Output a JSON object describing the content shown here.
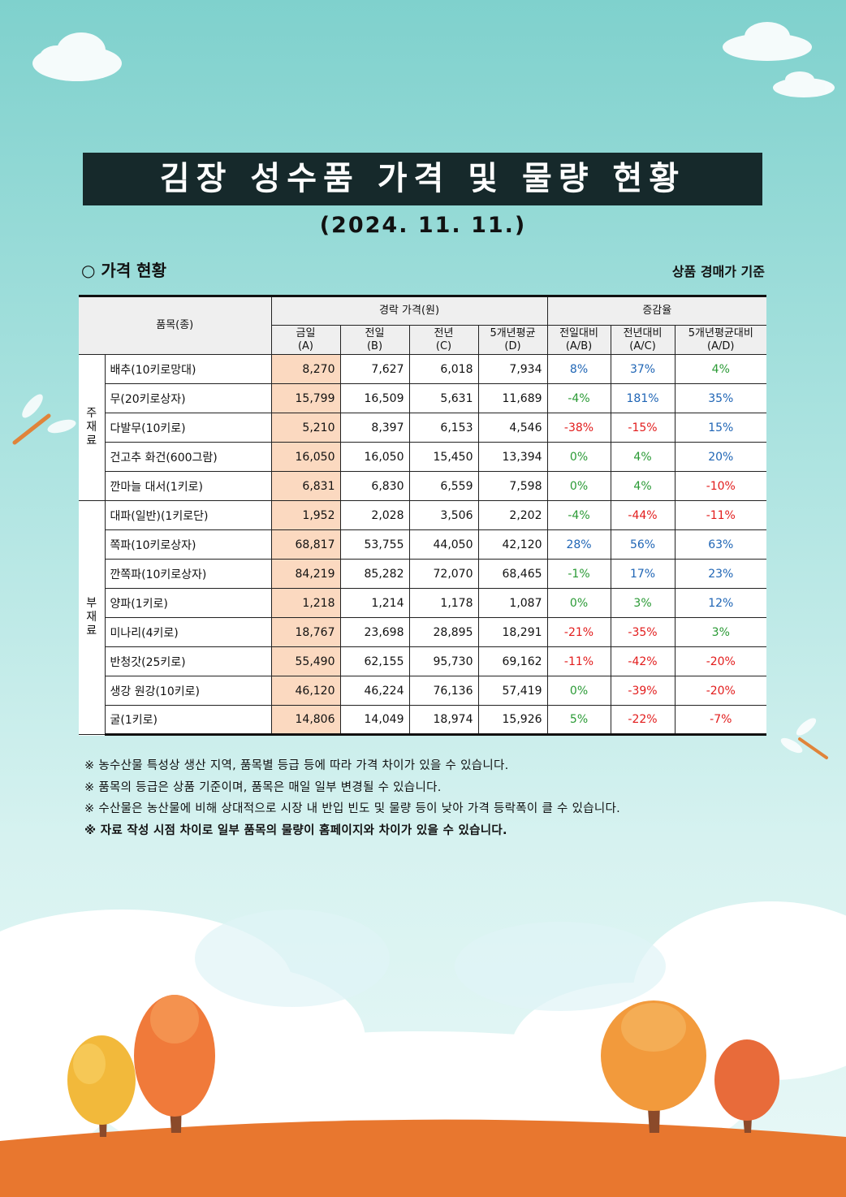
{
  "title": "김장 성수품 가격 및 물량 현황",
  "date": "(2024. 11. 11.)",
  "section_title": "○ 가격 현황",
  "basis": "상품 경매가 기준",
  "table": {
    "head_item": "품목(종)",
    "head_price_group": "경락 가격(원)",
    "head_rate_group": "증감율",
    "price_cols": [
      {
        "line1": "금일",
        "line2": "(A)"
      },
      {
        "line1": "전일",
        "line2": "(B)"
      },
      {
        "line1": "전년",
        "line2": "(C)"
      },
      {
        "line1": "5개년평균",
        "line2": "(D)"
      }
    ],
    "rate_cols": [
      {
        "line1": "전일대비",
        "line2": "(A/B)"
      },
      {
        "line1": "전년대비",
        "line2": "(A/C)"
      },
      {
        "line1": "5개년평균대비",
        "line2": "(A/D)"
      }
    ],
    "groups": [
      {
        "label_lines": [
          "주",
          "재",
          "료"
        ],
        "rows": [
          {
            "name": "배추(10키로망대)",
            "a": "8,270",
            "b": "7,627",
            "c": "6,018",
            "d": "7,934",
            "ab": "8%",
            "ac": "37%",
            "ad": "4%",
            "ab_color": "#1f65b5",
            "ac_color": "#1f65b5",
            "ad_color": "#2a9a35"
          },
          {
            "name": "무(20키로상자)",
            "a": "15,799",
            "b": "16,509",
            "c": "5,631",
            "d": "11,689",
            "ab": "-4%",
            "ac": "181%",
            "ad": "35%",
            "ab_color": "#2a9a35",
            "ac_color": "#1f65b5",
            "ad_color": "#1f65b5"
          },
          {
            "name": "다발무(10키로)",
            "a": "5,210",
            "b": "8,397",
            "c": "6,153",
            "d": "4,546",
            "ab": "-38%",
            "ac": "-15%",
            "ad": "15%",
            "ab_color": "#e21c1c",
            "ac_color": "#e21c1c",
            "ad_color": "#1f65b5"
          },
          {
            "name": "건고추 화건(600그람)",
            "a": "16,050",
            "b": "16,050",
            "c": "15,450",
            "d": "13,394",
            "ab": "0%",
            "ac": "4%",
            "ad": "20%",
            "ab_color": "#2a9a35",
            "ac_color": "#2a9a35",
            "ad_color": "#1f65b5"
          },
          {
            "name": "깐마늘 대서(1키로)",
            "a": "6,831",
            "b": "6,830",
            "c": "6,559",
            "d": "7,598",
            "ab": "0%",
            "ac": "4%",
            "ad": "-10%",
            "ab_color": "#2a9a35",
            "ac_color": "#2a9a35",
            "ad_color": "#e21c1c"
          }
        ]
      },
      {
        "label_lines": [
          "부",
          "재",
          "료"
        ],
        "rows": [
          {
            "name": "대파(일반)(1키로단)",
            "a": "1,952",
            "b": "2,028",
            "c": "3,506",
            "d": "2,202",
            "ab": "-4%",
            "ac": "-44%",
            "ad": "-11%",
            "ab_color": "#2a9a35",
            "ac_color": "#e21c1c",
            "ad_color": "#e21c1c"
          },
          {
            "name": "쪽파(10키로상자)",
            "a": "68,817",
            "b": "53,755",
            "c": "44,050",
            "d": "42,120",
            "ab": "28%",
            "ac": "56%",
            "ad": "63%",
            "ab_color": "#1f65b5",
            "ac_color": "#1f65b5",
            "ad_color": "#1f65b5"
          },
          {
            "name": "깐쪽파(10키로상자)",
            "a": "84,219",
            "b": "85,282",
            "c": "72,070",
            "d": "68,465",
            "ab": "-1%",
            "ac": "17%",
            "ad": "23%",
            "ab_color": "#2a9a35",
            "ac_color": "#1f65b5",
            "ad_color": "#1f65b5"
          },
          {
            "name": "양파(1키로)",
            "a": "1,218",
            "b": "1,214",
            "c": "1,178",
            "d": "1,087",
            "ab": "0%",
            "ac": "3%",
            "ad": "12%",
            "ab_color": "#2a9a35",
            "ac_color": "#2a9a35",
            "ad_color": "#1f65b5"
          },
          {
            "name": "미나리(4키로)",
            "a": "18,767",
            "b": "23,698",
            "c": "28,895",
            "d": "18,291",
            "ab": "-21%",
            "ac": "-35%",
            "ad": "3%",
            "ab_color": "#e21c1c",
            "ac_color": "#e21c1c",
            "ad_color": "#2a9a35"
          },
          {
            "name": "반청갓(25키로)",
            "a": "55,490",
            "b": "62,155",
            "c": "95,730",
            "d": "69,162",
            "ab": "-11%",
            "ac": "-42%",
            "ad": "-20%",
            "ab_color": "#e21c1c",
            "ac_color": "#e21c1c",
            "ad_color": "#e21c1c"
          },
          {
            "name": "생강 원강(10키로)",
            "a": "46,120",
            "b": "46,224",
            "c": "76,136",
            "d": "57,419",
            "ab": "0%",
            "ac": "-39%",
            "ad": "-20%",
            "ab_color": "#2a9a35",
            "ac_color": "#e21c1c",
            "ad_color": "#e21c1c"
          },
          {
            "name": "굴(1키로)",
            "a": "14,806",
            "b": "14,049",
            "c": "18,974",
            "d": "15,926",
            "ab": "5%",
            "ac": "-22%",
            "ad": "-7%",
            "ab_color": "#2a9a35",
            "ac_color": "#e21c1c",
            "ad_color": "#e21c1c"
          }
        ]
      }
    ]
  },
  "notes": [
    {
      "text": "※ 농수산물 특성상 생산 지역, 품목별 등급 등에 따라 가격 차이가 있을 수 있습니다.",
      "bold": false
    },
    {
      "text": "※ 품목의 등급은 상품 기준이며, 품목은 매일 일부 변경될 수 있습니다.",
      "bold": false
    },
    {
      "text": "※ 수산물은 농산물에 비해 상대적으로 시장 내 반입 빈도 및 물량 등이 낮아 가격 등락폭이 클 수 있습니다.",
      "bold": false
    },
    {
      "text": "※ 자료 작성 시점 차이로 일부 품목의 물량이 홈페이지와 차이가 있을 수 있습니다.",
      "bold": true
    }
  ],
  "colors": {
    "title_bg": "#16292b",
    "today_highlight": "#fbd9c0",
    "increase": "#1f65b5",
    "decrease": "#e21c1c",
    "neutral": "#2a9a35"
  }
}
